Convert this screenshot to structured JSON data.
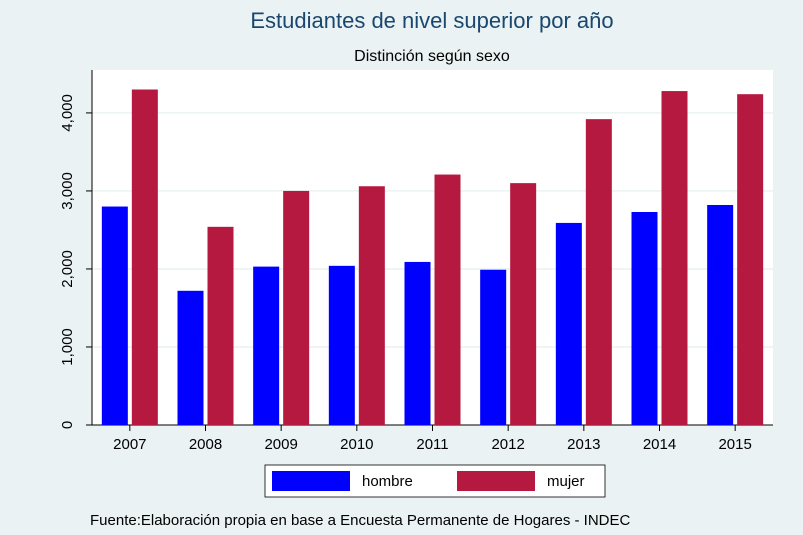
{
  "chart_data": {
    "type": "bar",
    "title": "Estudiantes de nivel superior por año",
    "subtitle": "Distinción según sexo",
    "note": "Fuente:Elaboración propia en base a Encuesta Permanente de Hogares - INDEC",
    "categories": [
      "2007",
      "2008",
      "2009",
      "2010",
      "2011",
      "2012",
      "2013",
      "2014",
      "2015"
    ],
    "series": [
      {
        "name": "hombre",
        "color": "#0000ff",
        "values": [
          2800,
          1720,
          2030,
          2040,
          2090,
          1990,
          2590,
          2730,
          2820
        ]
      },
      {
        "name": "mujer",
        "color": "#b5193f",
        "values": [
          4300,
          2540,
          3000,
          3060,
          3210,
          3100,
          3920,
          4280,
          4240
        ]
      }
    ],
    "ylim": [
      0,
      4550
    ],
    "yticks": [
      0,
      {
        "value": 1000,
        "label": "1,000"
      },
      {
        "value": 2000,
        "label": "2,000"
      },
      {
        "value": 3000,
        "label": "3,000"
      },
      {
        "value": 4000,
        "label": "4,000"
      }
    ],
    "grid": true,
    "legend": "bottom"
  }
}
